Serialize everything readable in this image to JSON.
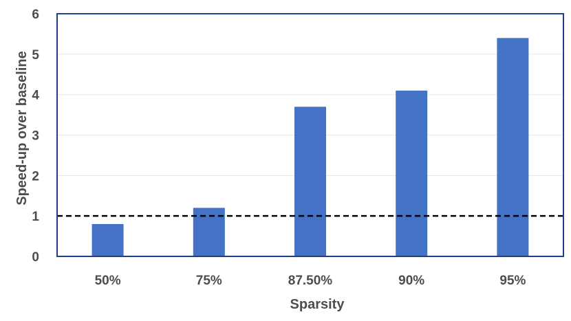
{
  "chart_data": {
    "type": "bar",
    "categories": [
      "50%",
      "75%",
      "87.50%",
      "90%",
      "95%"
    ],
    "values": [
      0.8,
      1.2,
      3.7,
      4.1,
      5.4
    ],
    "title": "",
    "xlabel": "Sparsity",
    "ylabel": "Speed-up over baseline",
    "ylim": [
      0,
      6
    ],
    "yticks": [
      "0",
      "1",
      "2",
      "3",
      "4",
      "5",
      "6"
    ],
    "grid": true,
    "legend": "none",
    "reference_line": {
      "value": 1,
      "style": "dashed",
      "color": "#000000"
    },
    "bar_color": "#4472c4",
    "frame_color": "#1f3f8f",
    "grid_color": "#e6e6e6"
  }
}
